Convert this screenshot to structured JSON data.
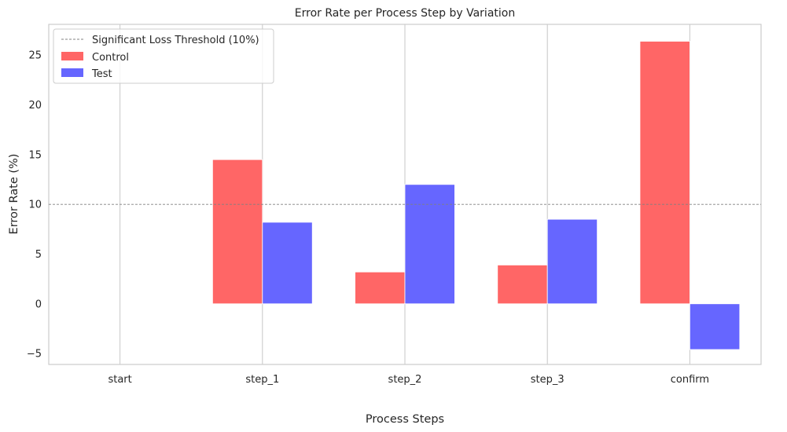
{
  "chart_data": {
    "type": "bar",
    "title": "Error Rate per Process Step by Variation",
    "xlabel": "Process Steps",
    "ylabel": "Error Rate (%)",
    "categories": [
      "start",
      "step_1",
      "step_2",
      "step_3",
      "confirm"
    ],
    "series": [
      {
        "name": "Control",
        "values": [
          0,
          14.5,
          3.2,
          3.9,
          26.4
        ],
        "color": "#ff6666"
      },
      {
        "name": "Test",
        "values": [
          0,
          8.2,
          12.0,
          8.5,
          -4.6
        ],
        "color": "#6666ff"
      }
    ],
    "ylim": [
      -6.1,
      28.1
    ],
    "yticks": [
      -5,
      0,
      5,
      10,
      15,
      20,
      25
    ],
    "threshold": {
      "value": 10,
      "label": "Significant Loss Threshold (10%)",
      "color": "#808080",
      "style": "dashed"
    },
    "grid": {
      "x": true,
      "y": false
    },
    "legend_position": "top-left"
  }
}
